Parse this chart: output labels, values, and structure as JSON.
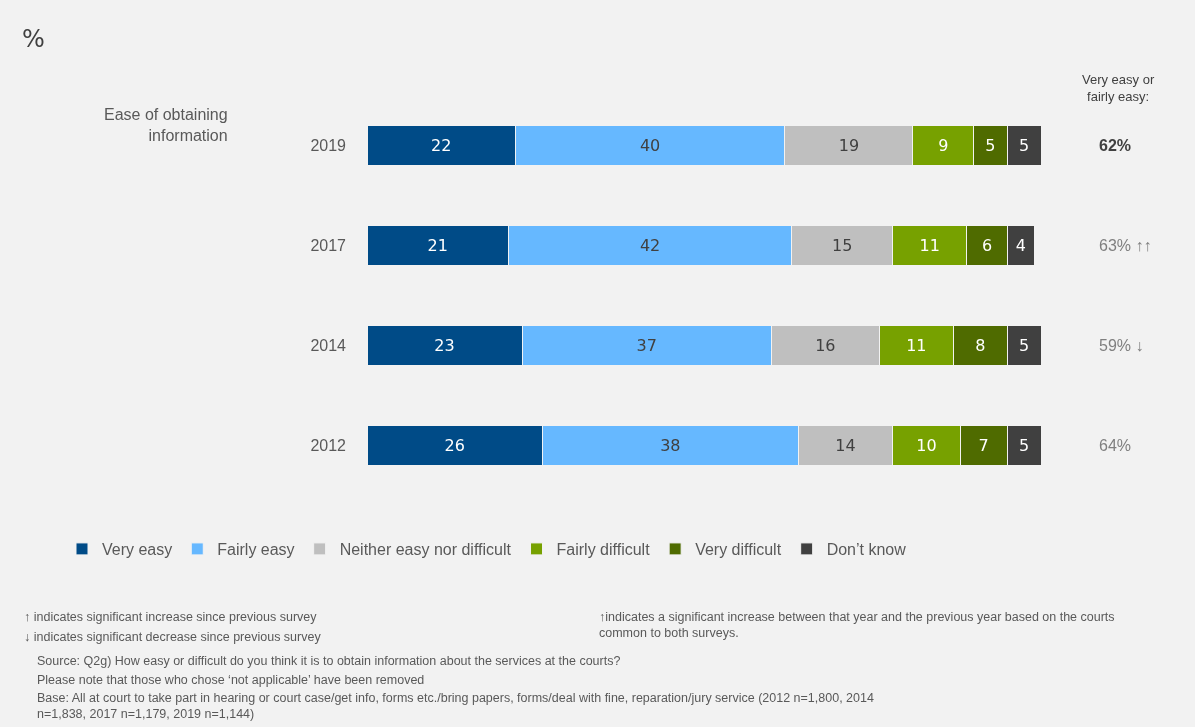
{
  "chart_data": {
    "type": "bar",
    "orientation": "horizontal",
    "stacked": true,
    "data_labels": true,
    "title": "%",
    "categories": [
      "2019",
      "2017",
      "2014",
      "2012"
    ],
    "series": [
      {
        "name": "Very easy",
        "color": "#004b87",
        "values": [
          22,
          21,
          23,
          26
        ]
      },
      {
        "name": "Fairly easy",
        "color": "#66b8ff",
        "values": [
          40,
          42,
          37,
          38
        ]
      },
      {
        "name": "Neither easy nor difficult",
        "color": "#bfbfbf",
        "values": [
          19,
          15,
          16,
          14
        ]
      },
      {
        "name": "Fairly difficult",
        "color": "#77a100",
        "values": [
          9,
          11,
          11,
          10
        ]
      },
      {
        "name": "Very difficult",
        "color": "#4f6b00",
        "values": [
          5,
          6,
          8,
          7
        ]
      },
      {
        "name": "Don’t know",
        "color": "#404040",
        "values": [
          5,
          4,
          5,
          5
        ]
      }
    ],
    "xlim": [
      0,
      100
    ],
    "tick_labels": "y",
    "grid": false,
    "legend": "bottom",
    "annotations": [
      "Ease of obtaining information",
      "Very easy or fairly easy:",
      "62%",
      "63% ↑↑",
      "59% ↓",
      "64%",
      "↑ indicates significant increase since previous survey",
      "↓ indicates significant decrease since previous survey",
      "↑indicates a significant increase between that year and the previous year based on the courts common to both surveys.",
      "Source: Q2g) How easy or difficult do you think it is to obtain information about the services at the courts?",
      "Please note that those who chose ‘not applicable’ have been removed",
      "Base: All at court to take part in hearing or court case/get info, forms etc./bring papers, forms/deal with fine, reparation/jury service (2012 n=1,800, 2014 n=1,838, 2017 n=1,179, 2019 n=1,144)"
    ]
  }
}
